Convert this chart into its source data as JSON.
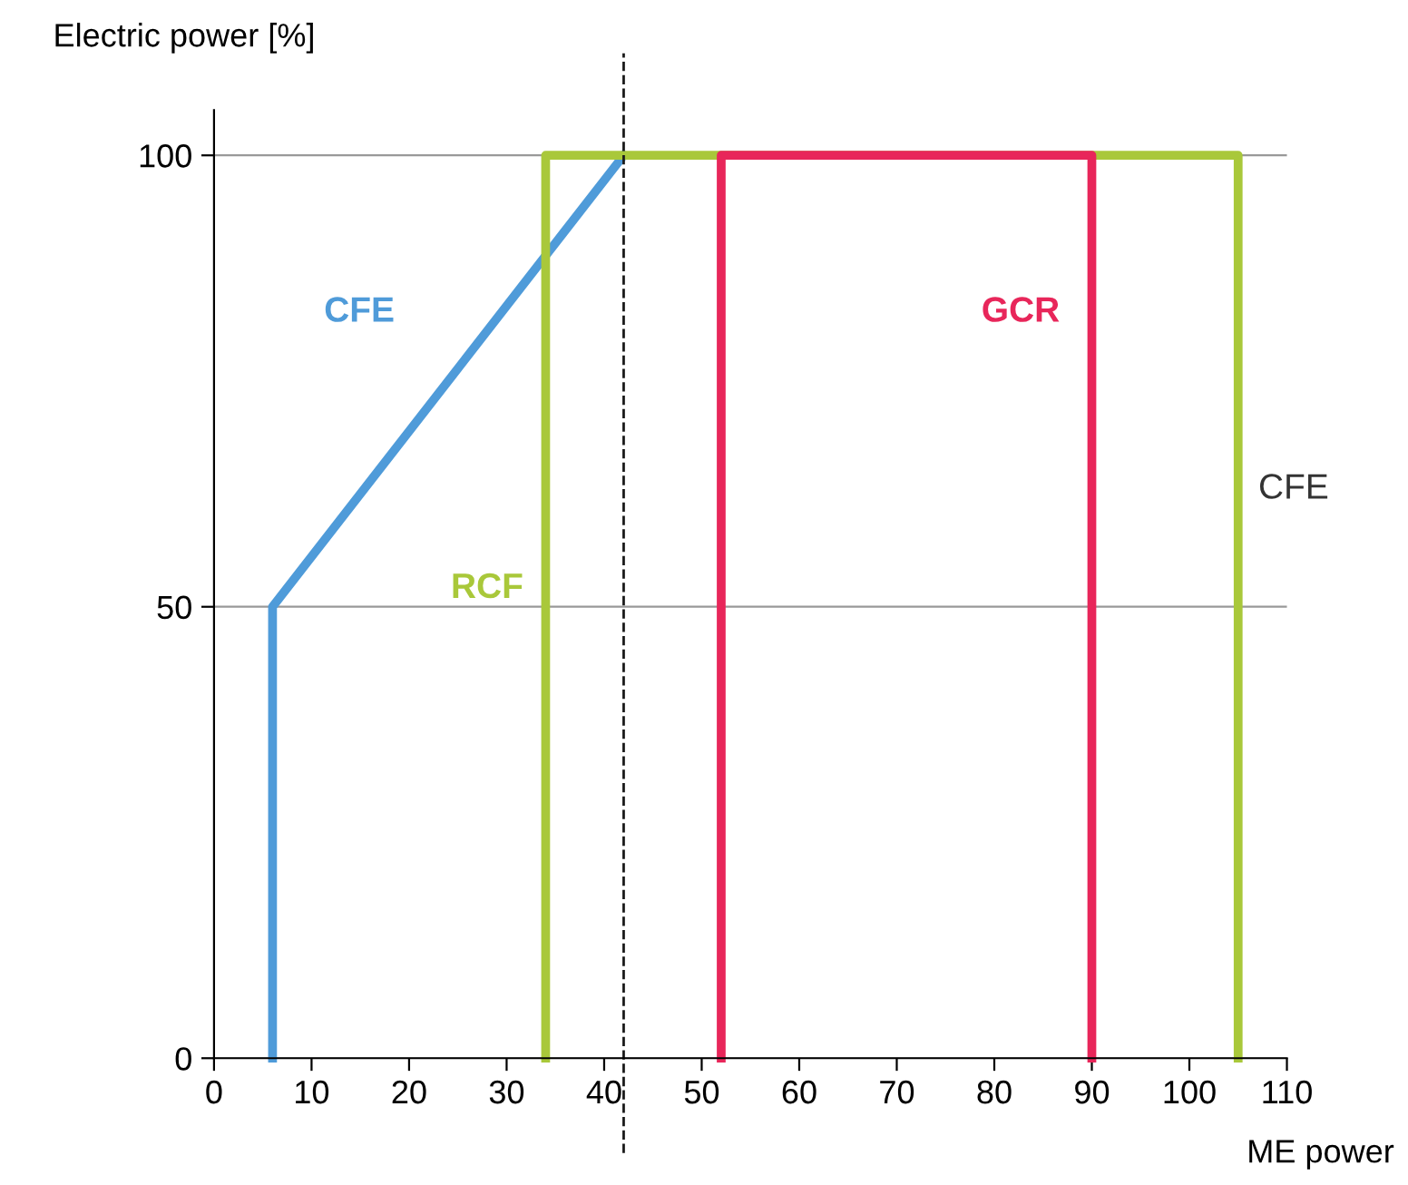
{
  "chart_data": {
    "type": "line",
    "xlabel": "ME power",
    "ylabel": "Electric power [%]",
    "xlim": [
      0,
      110
    ],
    "xticks": [
      0,
      10,
      20,
      30,
      40,
      50,
      60,
      70,
      80,
      90,
      100,
      110
    ],
    "ylim": [
      0,
      105
    ],
    "yticks": [
      0,
      50,
      100
    ],
    "grid": "y",
    "legend": false,
    "marker": "none",
    "line_style": "solid",
    "series": [
      {
        "name": "CFE",
        "color": "#4f9bd9",
        "x": [
          6,
          6,
          42
        ],
        "values": [
          0,
          50,
          100
        ]
      },
      {
        "name": "RCF",
        "color": "#a9c83a",
        "x": [
          34,
          34,
          105,
          105
        ],
        "values": [
          0,
          100,
          100,
          0
        ]
      },
      {
        "name": "GCR",
        "color": "#e8265a",
        "x": [
          52,
          52,
          90,
          90
        ],
        "values": [
          0,
          100,
          100,
          0
        ]
      }
    ],
    "ref_lines": [
      {
        "axis": "x",
        "value": 42,
        "color": "#1a1a1a",
        "line_style": "dashed"
      }
    ],
    "annotations": [
      {
        "text": "CFE",
        "x": 105,
        "y": 63
      }
    ]
  }
}
